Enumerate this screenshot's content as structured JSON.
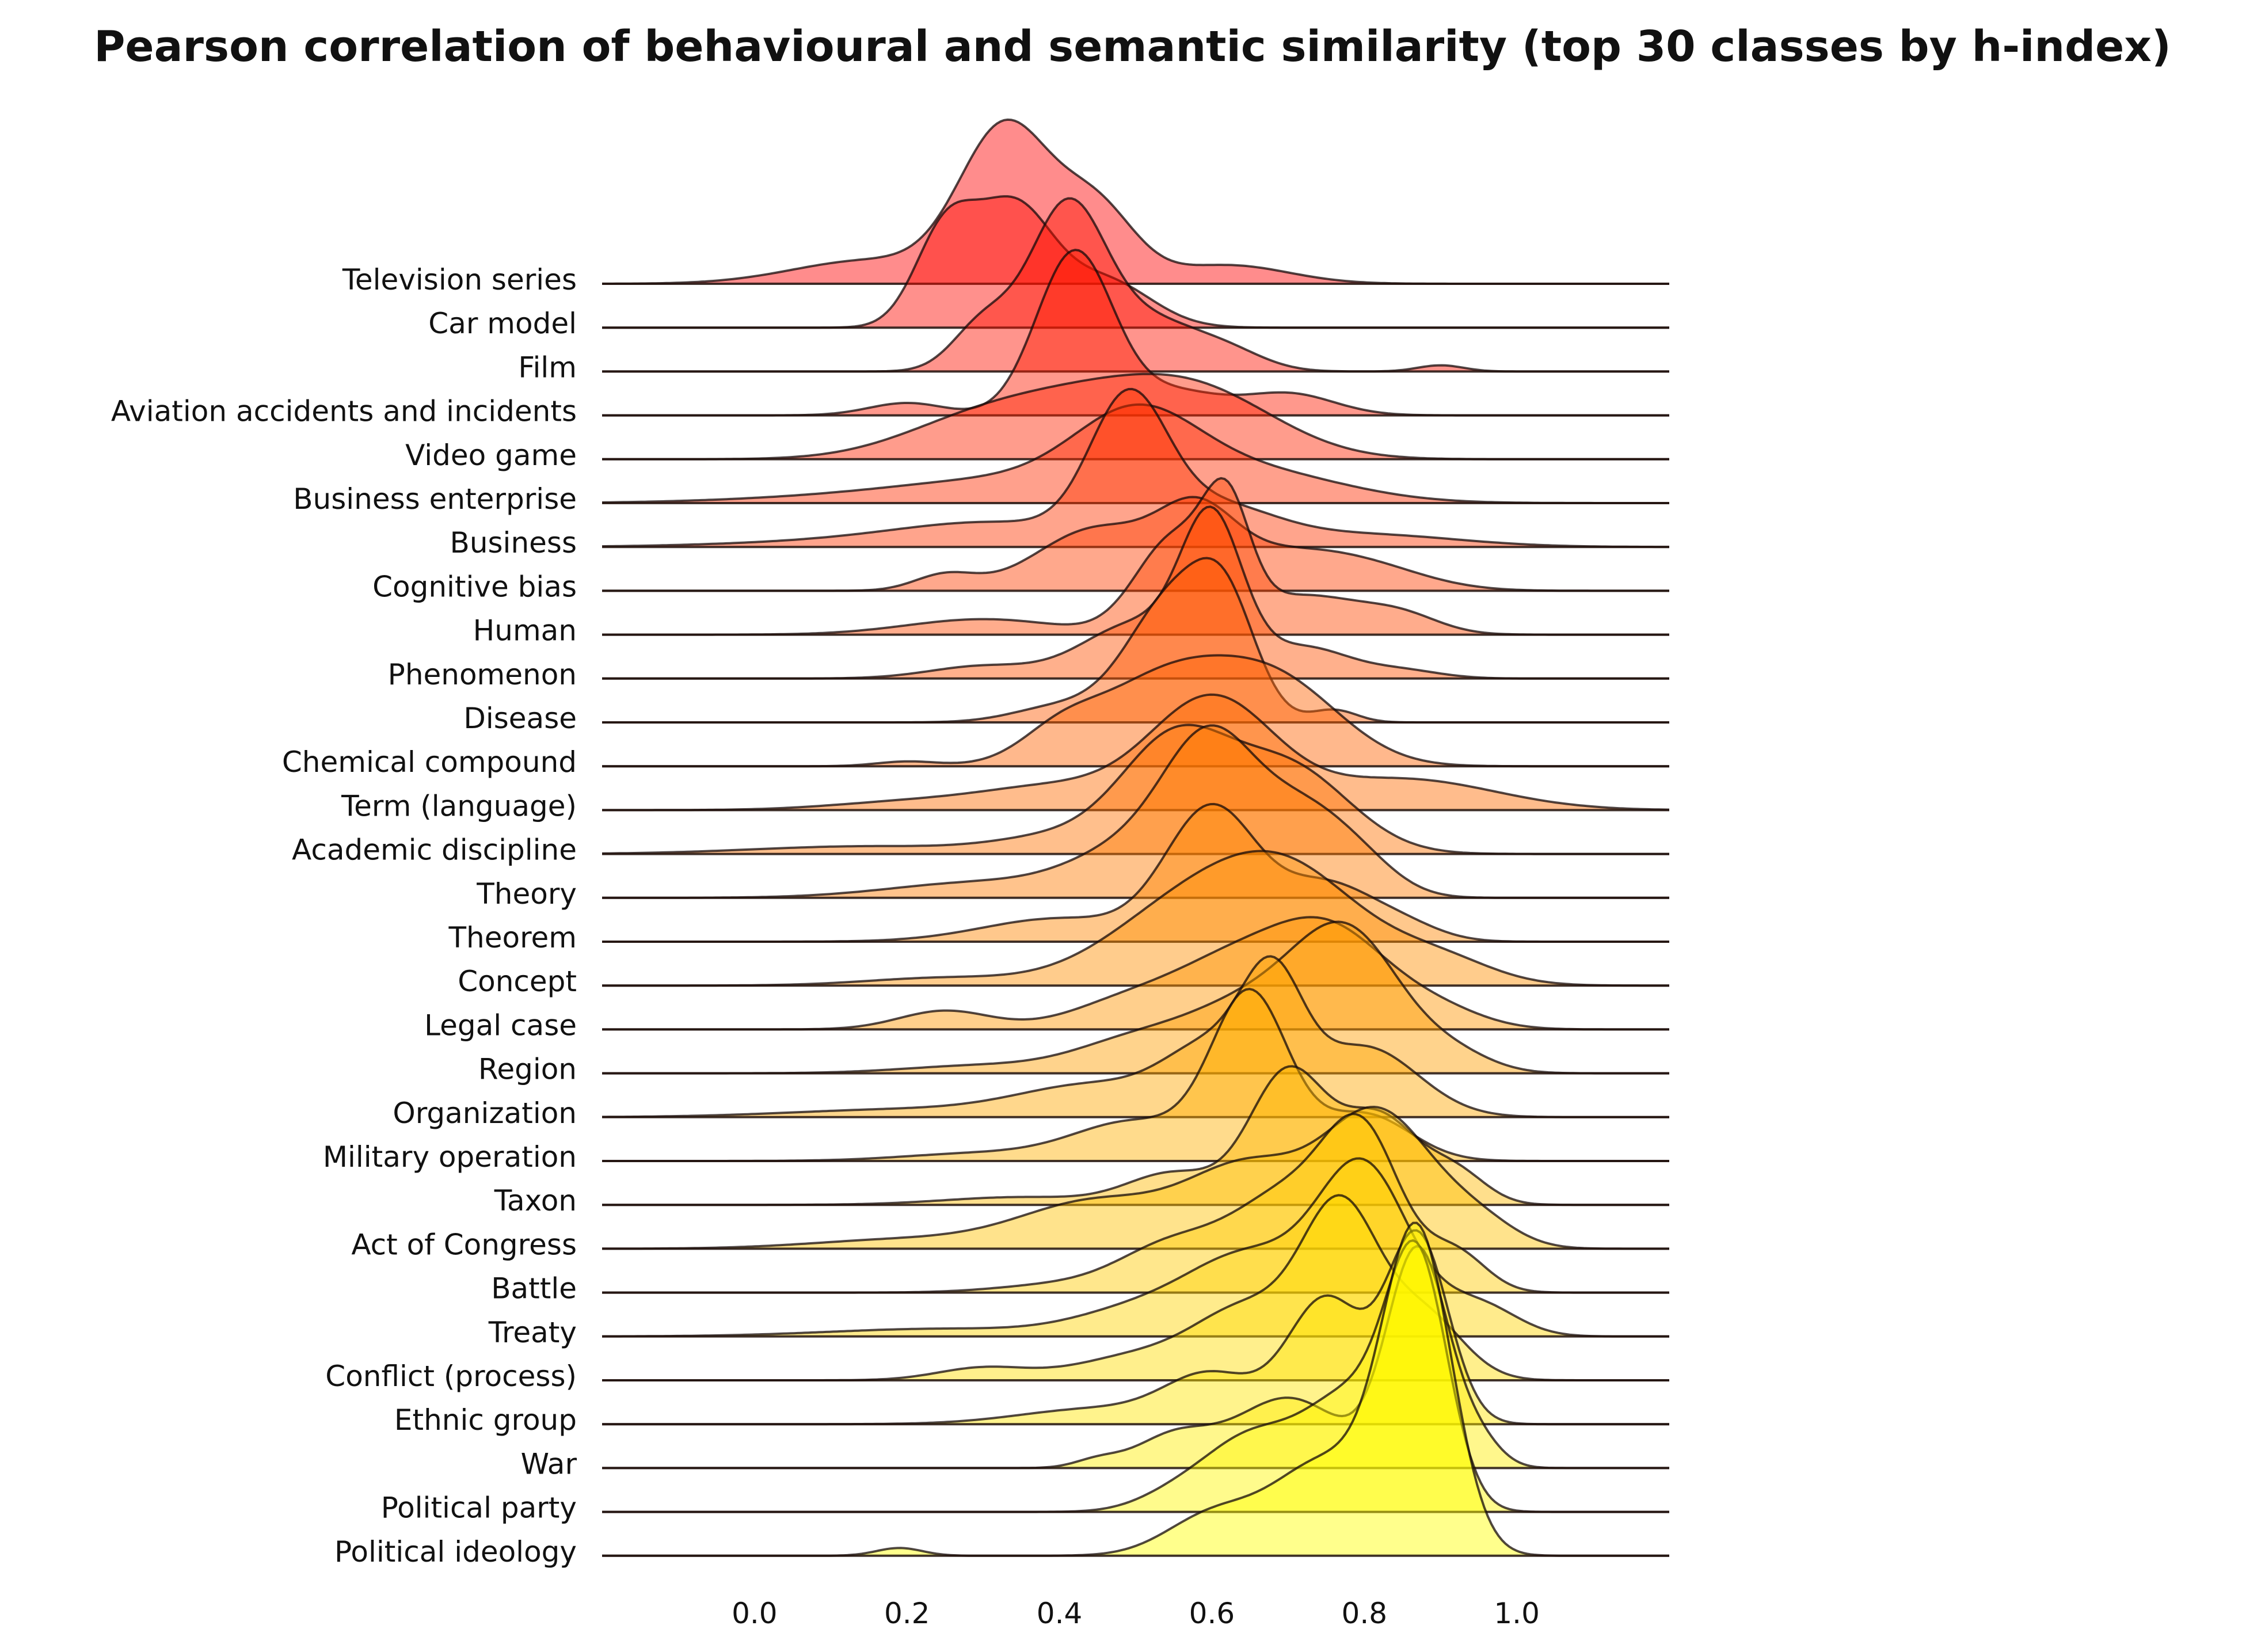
{
  "chart_data": {
    "type": "ridgeline",
    "title": "Pearson correlation of behavioural and semantic similarity (top 30 classes by h-index)",
    "xlabel": "",
    "ylabel": "",
    "xlim": [
      -0.2,
      1.2
    ],
    "xticks": [
      "0.0",
      "0.2",
      "0.4",
      "0.6",
      "0.8",
      "1.0"
    ],
    "grid": false,
    "color_scale": [
      "#ff0000",
      "#ffff00"
    ],
    "series": [
      {
        "name": "Television series",
        "peaks": [
          [
            0.15,
            0.15,
            0.1
          ],
          [
            0.33,
            1.0,
            0.06
          ],
          [
            0.45,
            0.45,
            0.05
          ],
          [
            0.62,
            0.12,
            0.08
          ]
        ]
      },
      {
        "name": "Car model",
        "peaks": [
          [
            0.25,
            0.6,
            0.04
          ],
          [
            0.34,
            0.75,
            0.05
          ],
          [
            0.46,
            0.3,
            0.06
          ]
        ]
      },
      {
        "name": "Film",
        "peaks": [
          [
            0.3,
            0.3,
            0.04
          ],
          [
            0.41,
            1.05,
            0.05
          ],
          [
            0.52,
            0.3,
            0.06
          ],
          [
            0.62,
            0.12,
            0.05
          ],
          [
            0.9,
            0.04,
            0.03
          ]
        ]
      },
      {
        "name": "Aviation accidents and incidents",
        "peaks": [
          [
            0.2,
            0.08,
            0.05
          ],
          [
            0.42,
            1.05,
            0.05
          ],
          [
            0.55,
            0.15,
            0.06
          ],
          [
            0.7,
            0.14,
            0.06
          ]
        ]
      },
      {
        "name": "Video game",
        "peaks": [
          [
            0.28,
            0.18,
            0.1
          ],
          [
            0.45,
            0.38,
            0.12
          ],
          [
            0.6,
            0.3,
            0.1
          ]
        ]
      },
      {
        "name": "Business enterprise",
        "peaks": [
          [
            0.1,
            0.03,
            0.15
          ],
          [
            0.35,
            0.15,
            0.15
          ],
          [
            0.5,
            0.45,
            0.08
          ],
          [
            0.65,
            0.2,
            0.12
          ]
        ]
      },
      {
        "name": "Business",
        "peaks": [
          [
            0.1,
            0.03,
            0.15
          ],
          [
            0.32,
            0.15,
            0.13
          ],
          [
            0.49,
            0.85,
            0.05
          ],
          [
            0.6,
            0.25,
            0.08
          ],
          [
            0.8,
            0.08,
            0.12
          ]
        ]
      },
      {
        "name": "Cognitive bias",
        "peaks": [
          [
            0.25,
            0.1,
            0.04
          ],
          [
            0.45,
            0.4,
            0.08
          ],
          [
            0.58,
            0.4,
            0.05
          ],
          [
            0.68,
            0.2,
            0.08
          ],
          [
            0.8,
            0.15,
            0.08
          ]
        ]
      },
      {
        "name": "Human",
        "peaks": [
          [
            0.3,
            0.1,
            0.1
          ],
          [
            0.55,
            0.6,
            0.05
          ],
          [
            0.62,
            0.65,
            0.03
          ],
          [
            0.72,
            0.25,
            0.08
          ],
          [
            0.85,
            0.1,
            0.05
          ]
        ]
      },
      {
        "name": "Phenomenon",
        "peaks": [
          [
            0.3,
            0.08,
            0.07
          ],
          [
            0.5,
            0.35,
            0.07
          ],
          [
            0.6,
            0.95,
            0.04
          ],
          [
            0.72,
            0.2,
            0.06
          ],
          [
            0.85,
            0.05,
            0.05
          ]
        ]
      },
      {
        "name": "Disease",
        "peaks": [
          [
            0.4,
            0.1,
            0.06
          ],
          [
            0.55,
            0.8,
            0.06
          ],
          [
            0.62,
            0.55,
            0.04
          ],
          [
            0.76,
            0.08,
            0.03
          ]
        ]
      },
      {
        "name": "Chemical compound",
        "peaks": [
          [
            0.2,
            0.03,
            0.04
          ],
          [
            0.4,
            0.15,
            0.05
          ],
          [
            0.55,
            0.6,
            0.1
          ],
          [
            0.7,
            0.4,
            0.08
          ]
        ]
      },
      {
        "name": "Term (language)",
        "peaks": [
          [
            0.2,
            0.05,
            0.1
          ],
          [
            0.4,
            0.15,
            0.1
          ],
          [
            0.6,
            0.7,
            0.08
          ],
          [
            0.85,
            0.2,
            0.12
          ]
        ]
      },
      {
        "name": "Academic discipline",
        "peaks": [
          [
            0.15,
            0.05,
            0.15
          ],
          [
            0.4,
            0.1,
            0.08
          ],
          [
            0.55,
            0.7,
            0.07
          ],
          [
            0.7,
            0.55,
            0.08
          ]
        ]
      },
      {
        "name": "Theory",
        "peaks": [
          [
            0.3,
            0.1,
            0.12
          ],
          [
            0.5,
            0.3,
            0.08
          ],
          [
            0.6,
            0.9,
            0.06
          ],
          [
            0.72,
            0.5,
            0.06
          ],
          [
            0.8,
            0.15,
            0.05
          ]
        ]
      },
      {
        "name": "Theorem",
        "peaks": [
          [
            0.4,
            0.15,
            0.1
          ],
          [
            0.6,
            0.85,
            0.06
          ],
          [
            0.75,
            0.35,
            0.06
          ],
          [
            0.85,
            0.1,
            0.05
          ]
        ]
      },
      {
        "name": "Concept",
        "peaks": [
          [
            0.25,
            0.05,
            0.1
          ],
          [
            0.55,
            0.4,
            0.1
          ],
          [
            0.7,
            0.7,
            0.1
          ],
          [
            0.9,
            0.15,
            0.07
          ]
        ]
      },
      {
        "name": "Legal case",
        "peaks": [
          [
            0.25,
            0.12,
            0.06
          ],
          [
            0.5,
            0.2,
            0.08
          ],
          [
            0.62,
            0.3,
            0.07
          ],
          [
            0.75,
            0.65,
            0.08
          ],
          [
            0.9,
            0.1,
            0.06
          ]
        ]
      },
      {
        "name": "Region",
        "peaks": [
          [
            0.3,
            0.05,
            0.1
          ],
          [
            0.5,
            0.2,
            0.08
          ],
          [
            0.65,
            0.4,
            0.08
          ],
          [
            0.78,
            0.85,
            0.07
          ],
          [
            0.92,
            0.1,
            0.05
          ]
        ]
      },
      {
        "name": "Organization",
        "peaks": [
          [
            0.2,
            0.05,
            0.15
          ],
          [
            0.45,
            0.2,
            0.1
          ],
          [
            0.6,
            0.4,
            0.06
          ],
          [
            0.68,
            0.75,
            0.04
          ],
          [
            0.8,
            0.45,
            0.07
          ]
        ]
      },
      {
        "name": "Military operation",
        "peaks": [
          [
            0.3,
            0.05,
            0.1
          ],
          [
            0.5,
            0.25,
            0.08
          ],
          [
            0.65,
            1.05,
            0.05
          ],
          [
            0.8,
            0.3,
            0.06
          ]
        ]
      },
      {
        "name": "Taxon",
        "peaks": [
          [
            0.35,
            0.05,
            0.1
          ],
          [
            0.55,
            0.2,
            0.06
          ],
          [
            0.7,
            0.85,
            0.05
          ],
          [
            0.82,
            0.55,
            0.05
          ],
          [
            0.92,
            0.2,
            0.04
          ]
        ]
      },
      {
        "name": "Act of Congress",
        "peaks": [
          [
            0.2,
            0.06,
            0.12
          ],
          [
            0.45,
            0.3,
            0.1
          ],
          [
            0.65,
            0.5,
            0.08
          ],
          [
            0.82,
            0.85,
            0.07
          ],
          [
            0.95,
            0.15,
            0.05
          ]
        ]
      },
      {
        "name": "Battle",
        "peaks": [
          [
            0.4,
            0.05,
            0.08
          ],
          [
            0.55,
            0.3,
            0.07
          ],
          [
            0.7,
            0.6,
            0.07
          ],
          [
            0.8,
            0.9,
            0.05
          ],
          [
            0.92,
            0.25,
            0.04
          ]
        ]
      },
      {
        "name": "Treaty",
        "peaks": [
          [
            0.25,
            0.05,
            0.15
          ],
          [
            0.5,
            0.15,
            0.08
          ],
          [
            0.65,
            0.5,
            0.08
          ],
          [
            0.8,
            1.05,
            0.06
          ],
          [
            0.95,
            0.2,
            0.05
          ]
        ]
      },
      {
        "name": "Conflict (process)",
        "peaks": [
          [
            0.3,
            0.08,
            0.06
          ],
          [
            0.5,
            0.15,
            0.08
          ],
          [
            0.65,
            0.45,
            0.07
          ],
          [
            0.77,
            1.05,
            0.05
          ],
          [
            0.88,
            0.4,
            0.05
          ]
        ]
      },
      {
        "name": "Ethnic group",
        "peaks": [
          [
            0.45,
            0.1,
            0.1
          ],
          [
            0.6,
            0.3,
            0.06
          ],
          [
            0.75,
            0.8,
            0.05
          ],
          [
            0.87,
            1.2,
            0.04
          ]
        ]
      },
      {
        "name": "War",
        "peaks": [
          [
            0.45,
            0.05,
            0.03
          ],
          [
            0.55,
            0.2,
            0.05
          ],
          [
            0.7,
            0.45,
            0.07
          ],
          [
            0.87,
            1.4,
            0.04
          ],
          [
            0.95,
            0.15,
            0.03
          ]
        ]
      },
      {
        "name": "Political party",
        "peaks": [
          [
            0.55,
            0.1,
            0.05
          ],
          [
            0.65,
            0.45,
            0.06
          ],
          [
            0.78,
            0.7,
            0.06
          ],
          [
            0.87,
            1.5,
            0.04
          ]
        ]
      },
      {
        "name": "Political ideology",
        "peaks": [
          [
            0.19,
            0.05,
            0.03
          ],
          [
            0.6,
            0.25,
            0.06
          ],
          [
            0.75,
            0.6,
            0.07
          ],
          [
            0.87,
            2.0,
            0.045
          ]
        ]
      }
    ]
  }
}
